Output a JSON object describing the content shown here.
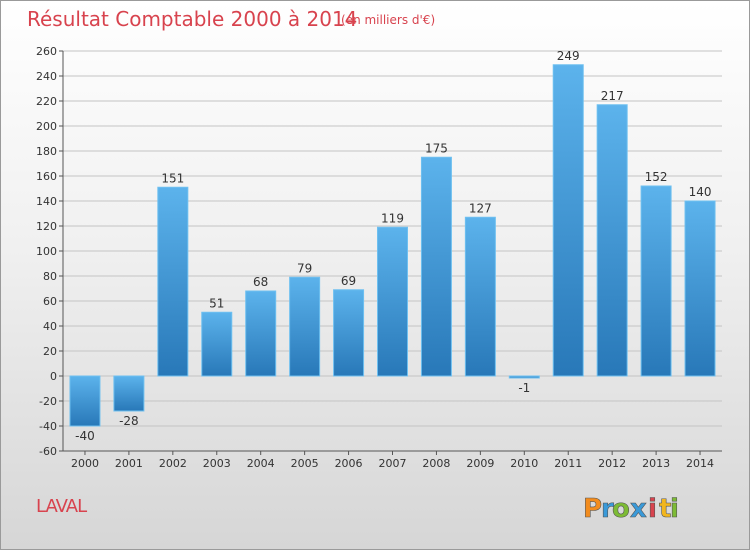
{
  "chart_data": {
    "type": "bar",
    "title": "Résultat Comptable 2000 à 2014",
    "subtitle": "(en milliers d'€)",
    "xlabel": "",
    "ylabel": "",
    "categories": [
      "2000",
      "2001",
      "2002",
      "2003",
      "2004",
      "2005",
      "2006",
      "2007",
      "2008",
      "2009",
      "2010",
      "2011",
      "2012",
      "2013",
      "2014"
    ],
    "values": [
      -40,
      -28,
      151,
      51,
      68,
      79,
      69,
      119,
      175,
      127,
      -1,
      249,
      217,
      152,
      140
    ],
    "ylim": [
      -60,
      260
    ],
    "yticks": [
      -60,
      -40,
      -20,
      0,
      20,
      40,
      60,
      80,
      100,
      120,
      140,
      160,
      180,
      200,
      220,
      240,
      260
    ],
    "grid": true,
    "bar_color": "#3d96d8"
  },
  "commune": "LAVAL",
  "logo": {
    "letters": [
      "P",
      "r",
      "o",
      "x",
      "i",
      "t",
      "i"
    ],
    "colors": [
      "#f28c1e",
      "#3a9ad9",
      "#7dbb35",
      "#3a9ad9",
      "#d8434e",
      "#f2b61e",
      "#7dbb35"
    ]
  }
}
